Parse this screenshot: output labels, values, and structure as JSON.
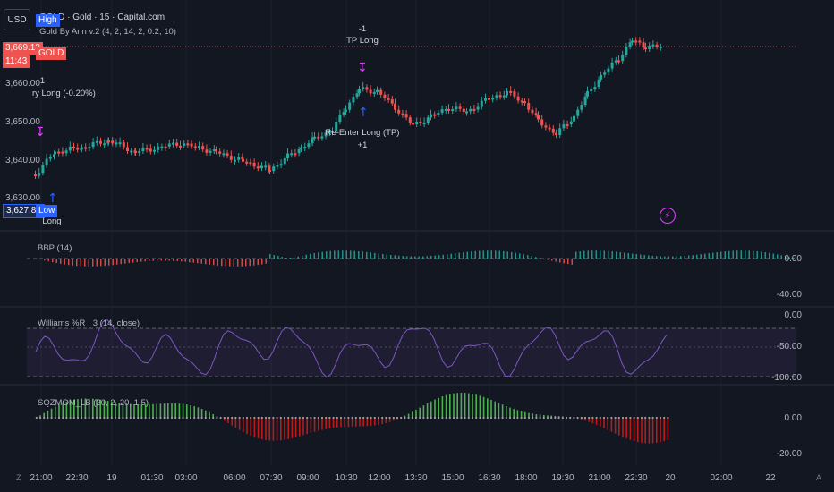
{
  "toolbar": {
    "currency_label": "USD"
  },
  "legend": {
    "symbol_line": "GOLD · Gold · 15 · Capital.com",
    "indicator_line": "Gold By Ann v.2 (4, 2, 14, 2, 0.2, 10)"
  },
  "tags": {
    "high": "High",
    "price": "3,669.13",
    "symbol": "GOLD",
    "countdown": "11:43",
    "last": "3,627.83",
    "low": "Low"
  },
  "price_axis": {
    "labels": [
      "3,660.00",
      "3,650.00",
      "3,640.00",
      "3,630.00"
    ]
  },
  "annotations": {
    "tp_count": "-1",
    "tp_label": "TP Long",
    "left_count": "-1",
    "left_label": "ry Long (-0.20%)",
    "reenter_label": "Re-Enter Long (TP)",
    "reenter_count": "+1",
    "long_label": "Long"
  },
  "panes": {
    "bbp": {
      "title": "BBP (14)",
      "labels": [
        "0.00",
        "-40.00"
      ]
    },
    "willr": {
      "title": "Williams %R · 3 (14, close)",
      "labels": [
        "0.00",
        "-50.00",
        "-100.00"
      ]
    },
    "sqz": {
      "title": "SQZMOM_LB (20, 2, 20, 1.5)",
      "labels": [
        "0.00",
        "-20.00"
      ]
    }
  },
  "time_axis": {
    "labels": [
      "21:00",
      "22:30",
      "19",
      "01:30",
      "03:00",
      "06:00",
      "07:30",
      "09:00",
      "10:30",
      "12:00",
      "13:30",
      "15:00",
      "16:30",
      "18:00",
      "19:30",
      "21:00",
      "22:30",
      "20",
      "02:00",
      "22"
    ]
  },
  "corners": {
    "left": "Z",
    "right": "A"
  },
  "colors": {
    "bg": "#131722",
    "up": "#26a69a",
    "down": "#ef5350",
    "signal": "#e040fb",
    "arrow": "#2962ff",
    "willr_line": "#7e57c2",
    "sqz_up": "#4caf50",
    "sqz_down": "#b71c1c"
  },
  "icons": {
    "lightning": "lightning-icon",
    "sell_arrow": "arrow-down-icon",
    "buy_arrow": "arrow-up-icon"
  }
}
